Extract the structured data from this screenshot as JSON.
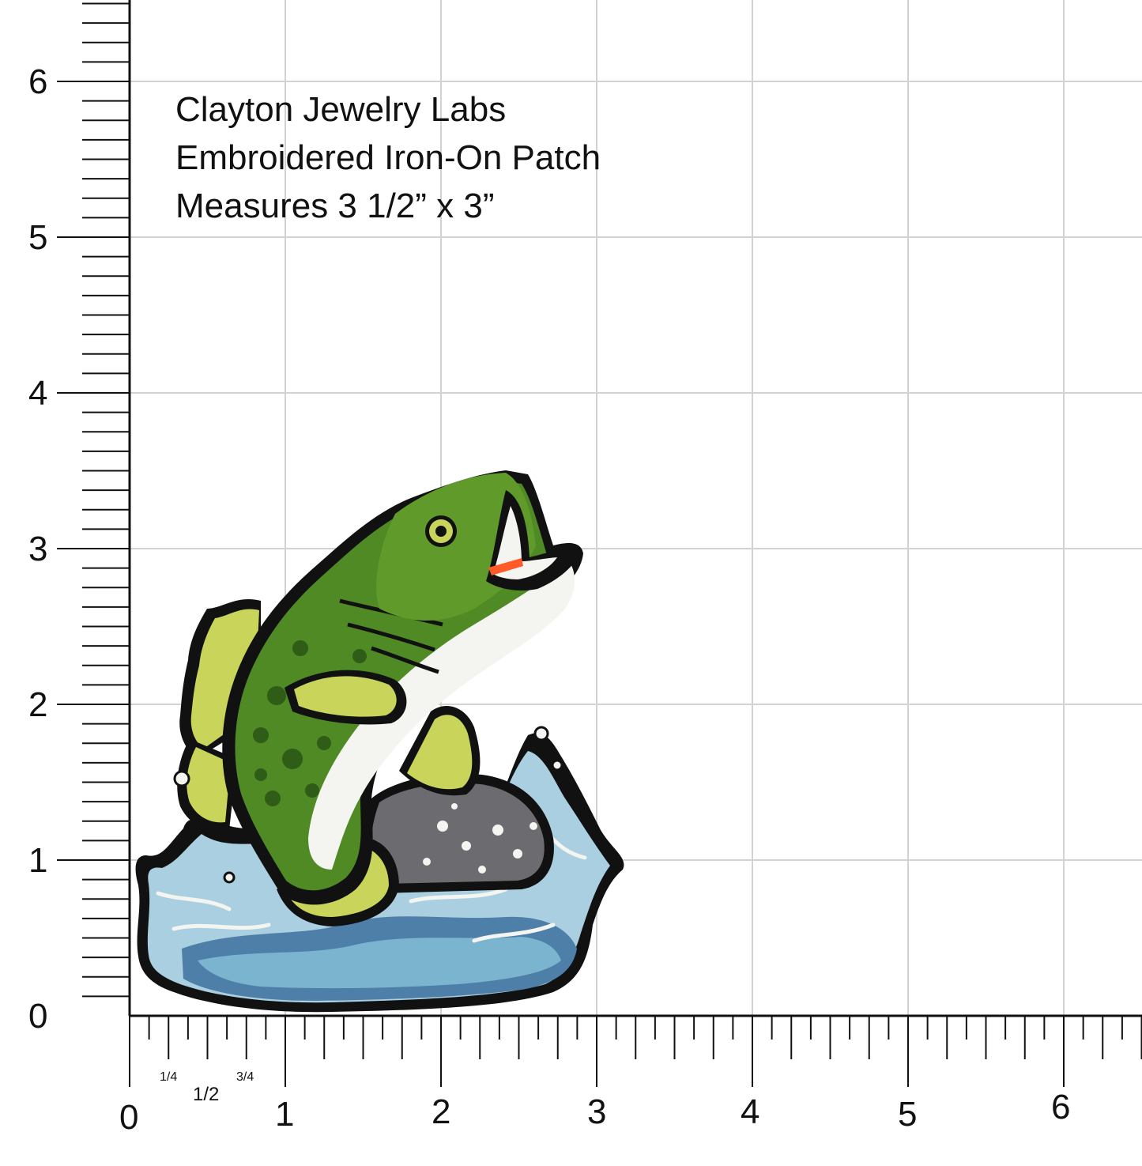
{
  "caption": {
    "line1": "Clayton Jewelry Labs",
    "line2": "Embroidered Iron-On Patch",
    "line3": "Measures 3 1/2” x 3”"
  },
  "ruler": {
    "y_labels": [
      "0",
      "1",
      "2",
      "3",
      "4",
      "5",
      "6"
    ],
    "x_labels": [
      "0",
      "1",
      "2",
      "3",
      "4",
      "5",
      "6"
    ],
    "x_fractions": [
      "1/4",
      "1/2",
      "3/4"
    ]
  },
  "patch": {
    "subject": "jumping largemouth bass embroidered patch",
    "colors": {
      "outline": "#111111",
      "body_green": "#4f8a24",
      "spots": "#2f5c16",
      "fin_yellow": "#c9d45a",
      "belly_white": "#f4f4f0",
      "mouth_orange": "#ff5a28",
      "rock_gray": "#6b6b70",
      "water_light": "#a9cfe0",
      "water_mid": "#7ab4cf",
      "water_deep": "#4d7fa8"
    }
  }
}
